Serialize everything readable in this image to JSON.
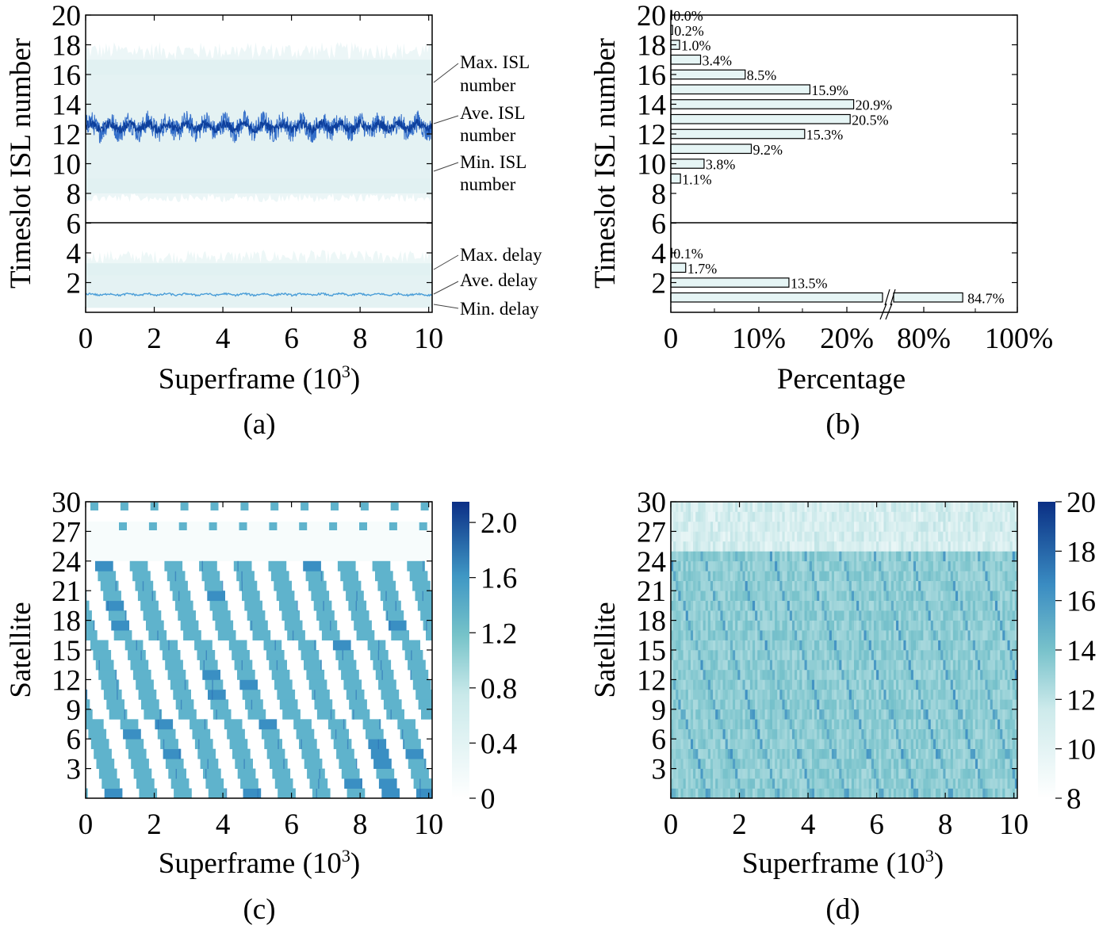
{
  "chart_data": [
    {
      "panel": "(a)",
      "type": "area",
      "xlabel": "Superframe (10",
      "xlabel_sup": "3",
      "xlabel_close": ")",
      "ylabel": "Timeslot  ISL number",
      "xlim": [
        0,
        10.1
      ],
      "ylim": [
        0,
        20
      ],
      "xticks": [
        "0",
        "2",
        "4",
        "6",
        "8",
        "10"
      ],
      "yticks": [
        "20",
        "18",
        "16",
        "14",
        "12",
        "10",
        "8",
        "6",
        "4",
        "2"
      ],
      "divider_y": 6,
      "annotations": [
        "Max. ISL",
        "number",
        "Ave. ISL",
        "number",
        "Min. ISL",
        "number",
        "Max. delay",
        "Ave. delay",
        "Min. delay"
      ],
      "series": [
        {
          "name": "Ave. ISL number",
          "mean": 12.5,
          "range": [
            11.5,
            13.5
          ],
          "color": "#1f5fc4"
        },
        {
          "name": "Max. ISL number",
          "value": 17
        },
        {
          "name": "Min. ISL number",
          "value": 8
        },
        {
          "name": "Ave. delay",
          "mean": 1.2,
          "color": "#4a9ed8"
        },
        {
          "name": "Max. delay",
          "value": 3.3
        },
        {
          "name": "Min. delay",
          "value": 0.3
        }
      ],
      "colors": {
        "envelope": "#dff0f1",
        "ave_isl": "#1f5fc4",
        "ave_delay": "#4a9ed8"
      }
    },
    {
      "panel": "(b)",
      "type": "bar",
      "orientation": "horizontal",
      "xlabel": "Percentage",
      "ylabel": "Timeslot  ISL number",
      "xticks": [
        "0",
        "10%",
        "20%",
        "80%",
        "100%"
      ],
      "yticks": [
        "20",
        "18",
        "16",
        "14",
        "12",
        "10",
        "8",
        "6",
        "4",
        "2"
      ],
      "axis_break": "between 20% and 80%",
      "isl_bars": [
        {
          "y": 20,
          "value": 0.0,
          "label": "0.0%"
        },
        {
          "y": 19,
          "value": 0.2,
          "label": "0.2%"
        },
        {
          "y": 18,
          "value": 1.0,
          "label": "1.0%"
        },
        {
          "y": 17,
          "value": 3.4,
          "label": "3.4%"
        },
        {
          "y": 16,
          "value": 8.5,
          "label": "8.5%"
        },
        {
          "y": 15,
          "value": 15.9,
          "label": "15.9%"
        },
        {
          "y": 14,
          "value": 20.9,
          "label": "20.9%"
        },
        {
          "y": 13,
          "value": 20.5,
          "label": "20.5%"
        },
        {
          "y": 12,
          "value": 15.3,
          "label": "15.3%"
        },
        {
          "y": 11,
          "value": 9.2,
          "label": "9.2%"
        },
        {
          "y": 10,
          "value": 3.8,
          "label": "3.8%"
        },
        {
          "y": 9,
          "value": 1.1,
          "label": "1.1%"
        }
      ],
      "delay_bars": [
        {
          "y": 4,
          "value": 0.1,
          "label": "0.1%"
        },
        {
          "y": 3,
          "value": 1.7,
          "label": "1.7%"
        },
        {
          "y": 2,
          "value": 13.5,
          "label": "13.5%"
        },
        {
          "y": 1,
          "value": 84.7,
          "label": "84.7%"
        }
      ],
      "colors": {
        "bar_fill": "#e6f5f5",
        "bar_stroke": "#000000"
      }
    },
    {
      "panel": "(c)",
      "type": "heatmap",
      "xlabel": "Superframe (10",
      "xlabel_sup": "3",
      "xlabel_close": ")",
      "ylabel": "Satellite",
      "xticks": [
        "0",
        "2",
        "4",
        "6",
        "8",
        "10"
      ],
      "yticks": [
        "30",
        "27",
        "24",
        "21",
        "18",
        "15",
        "12",
        "9",
        "6",
        "3"
      ],
      "colorbar_ticks": [
        "2.0",
        "1.6",
        "1.2",
        "0.8",
        "0.4",
        "0"
      ],
      "colorbar_range": [
        0,
        2.15
      ],
      "satellites": 30,
      "periods": 10,
      "typical_value": 1.0,
      "colors": {
        "cell": "#5fb3cc",
        "dark": "#1a4aa3",
        "empty": "#ffffff"
      }
    },
    {
      "panel": "(d)",
      "type": "heatmap",
      "xlabel": "Superframe (10",
      "xlabel_sup": "3",
      "xlabel_close": ")",
      "ylabel": "Satellite",
      "xticks": [
        "0",
        "2",
        "4",
        "6",
        "8",
        "10"
      ],
      "yticks": [
        "30",
        "27",
        "24",
        "21",
        "18",
        "15",
        "12",
        "9",
        "6",
        "3"
      ],
      "colorbar_ticks": [
        "20",
        "18",
        "16",
        "14",
        "12",
        "10",
        "8"
      ],
      "colorbar_range": [
        8,
        20
      ],
      "satellites": 30,
      "typical_value_main": 13,
      "typical_value_top": 10.5,
      "colors": {
        "low": "#f4fbfb",
        "mid": "#7cc6cf",
        "high": "#0a3f8f"
      }
    }
  ]
}
